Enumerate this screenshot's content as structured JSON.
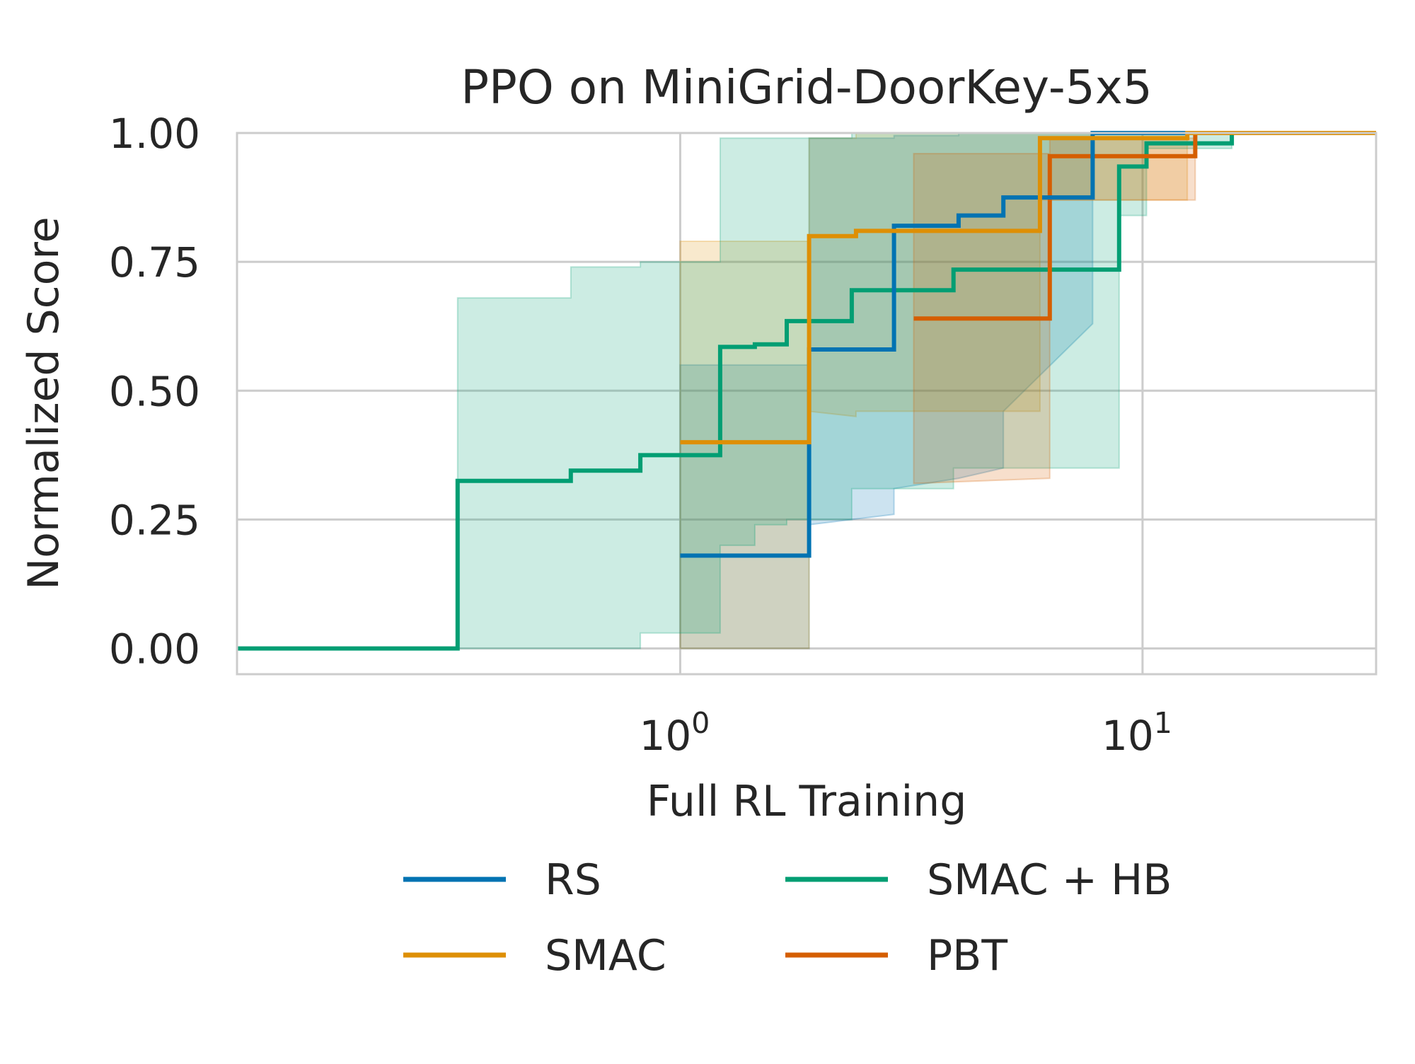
{
  "chart_data": {
    "type": "line",
    "title": "PPO on MiniGrid-DoorKey-5x5",
    "xlabel": "Full RL Training",
    "ylabel": "Normalized Score",
    "xscale": "log",
    "xlim": [
      0.11,
      32
    ],
    "ylim": [
      -0.05,
      1.0
    ],
    "xticks": [
      {
        "value": 1,
        "base": "10",
        "exp": "0"
      },
      {
        "value": 10,
        "base": "10",
        "exp": "1"
      }
    ],
    "yticks": [
      {
        "value": 0.0,
        "label": "0.00"
      },
      {
        "value": 0.25,
        "label": "0.25"
      },
      {
        "value": 0.5,
        "label": "0.50"
      },
      {
        "value": 0.75,
        "label": "0.75"
      },
      {
        "value": 1.0,
        "label": "1.00"
      }
    ],
    "grid": true,
    "legend_position": "bottom",
    "series": [
      {
        "name": "RS",
        "color": "#0173b2",
        "x": [
          1.0,
          1.9,
          1.9,
          2.9,
          2.9,
          4.0,
          4.0,
          5.0,
          5.0,
          7.8,
          7.8,
          32
        ],
        "y": [
          0.18,
          0.18,
          0.58,
          0.58,
          0.82,
          0.82,
          0.84,
          0.84,
          0.875,
          0.875,
          1.0,
          1.0
        ],
        "band_upper": [
          0.55,
          0.55,
          0.99,
          0.99,
          0.995,
          0.995,
          1.0,
          1.0,
          1.0,
          1.0,
          1.0,
          1.0
        ],
        "band_lower": [
          0.0,
          0.0,
          0.24,
          0.26,
          0.31,
          0.33,
          0.33,
          0.35,
          0.46,
          0.63,
          1.0,
          1.0
        ]
      },
      {
        "name": "SMAC",
        "color": "#de8f05",
        "x": [
          1.0,
          1.9,
          1.9,
          2.4,
          2.4,
          6.0,
          6.0,
          12.5,
          12.5,
          32
        ],
        "y": [
          0.4,
          0.4,
          0.8,
          0.8,
          0.81,
          0.81,
          0.99,
          0.99,
          1.0,
          1.0
        ],
        "band_upper": [
          0.79,
          0.79,
          0.99,
          0.99,
          1.0,
          1.0,
          1.0,
          1.0,
          1.0,
          1.0
        ],
        "band_lower": [
          0.0,
          0.0,
          0.46,
          0.45,
          0.46,
          0.46,
          0.87,
          0.87,
          1.0,
          1.0
        ]
      },
      {
        "name": "SMAC + HB",
        "color": "#029e73",
        "x": [
          0.11,
          0.33,
          0.33,
          0.58,
          0.58,
          0.82,
          0.82,
          1.22,
          1.22,
          1.45,
          1.45,
          1.7,
          1.7,
          2.35,
          2.35,
          3.9,
          3.9,
          8.9,
          8.9,
          10.2,
          10.2,
          15.6,
          15.6,
          32
        ],
        "y": [
          0.0,
          0.0,
          0.325,
          0.325,
          0.345,
          0.345,
          0.375,
          0.375,
          0.585,
          0.585,
          0.59,
          0.59,
          0.635,
          0.635,
          0.695,
          0.695,
          0.735,
          0.735,
          0.935,
          0.935,
          0.98,
          0.98,
          1.0,
          1.0
        ],
        "band_upper": [
          0.0,
          0.0,
          0.68,
          0.68,
          0.74,
          0.74,
          0.75,
          0.75,
          0.99,
          0.99,
          0.99,
          0.99,
          0.99,
          0.99,
          1.0,
          1.0,
          1.0,
          1.0,
          1.0,
          1.0,
          1.0,
          1.0,
          1.0,
          1.0
        ],
        "band_lower": [
          0.0,
          0.0,
          0.0,
          0.0,
          0.0,
          0.0,
          0.03,
          0.03,
          0.2,
          0.2,
          0.24,
          0.24,
          0.25,
          0.25,
          0.31,
          0.31,
          0.35,
          0.35,
          0.84,
          0.84,
          0.97,
          0.97,
          1.0,
          1.0
        ]
      },
      {
        "name": "PBT",
        "color": "#d55e00",
        "x": [
          3.2,
          6.3,
          6.3,
          13.0,
          13.0,
          32
        ],
        "y": [
          0.64,
          0.64,
          0.955,
          0.955,
          1.0,
          1.0
        ],
        "band_upper": [
          0.96,
          0.96,
          0.99,
          0.99,
          1.0,
          1.0
        ],
        "band_lower": [
          0.32,
          0.33,
          0.87,
          0.87,
          1.0,
          1.0
        ]
      }
    ]
  }
}
